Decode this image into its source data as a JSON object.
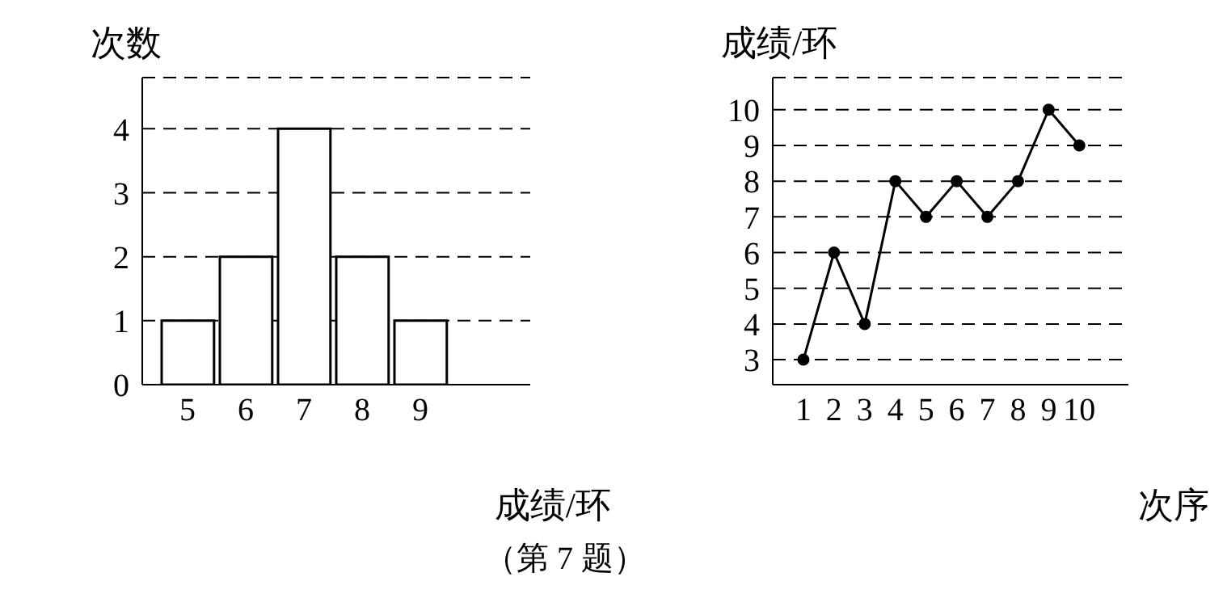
{
  "chart_data": [
    {
      "type": "bar",
      "xlabel": "成绩/环",
      "ylabel": "次数",
      "categories": [
        "5",
        "6",
        "7",
        "8",
        "9"
      ],
      "values": [
        1,
        2,
        4,
        2,
        1
      ],
      "color": "#ffffff",
      "ylim": [
        0,
        4.8
      ],
      "yticks": [
        0,
        1,
        2,
        3,
        4
      ],
      "grid": "y"
    },
    {
      "type": "line",
      "xlabel": "次序",
      "ylabel": "成绩/环",
      "x": [
        1,
        2,
        3,
        4,
        5,
        6,
        7,
        8,
        9,
        10
      ],
      "values": [
        3,
        6,
        4,
        8,
        7,
        8,
        7,
        8,
        10,
        9
      ],
      "color": "#000000",
      "marker": "circle",
      "line_style": "solid",
      "xlim": [
        0,
        11.6
      ],
      "xticks": [
        1,
        2,
        3,
        4,
        5,
        6,
        7,
        8,
        9,
        10
      ],
      "ylim": [
        2.3,
        10.9
      ],
      "yticks": [
        3,
        4,
        5,
        6,
        7,
        8,
        9,
        10
      ],
      "grid": "y",
      "annotations": [
        "（第 7 题）"
      ]
    }
  ]
}
